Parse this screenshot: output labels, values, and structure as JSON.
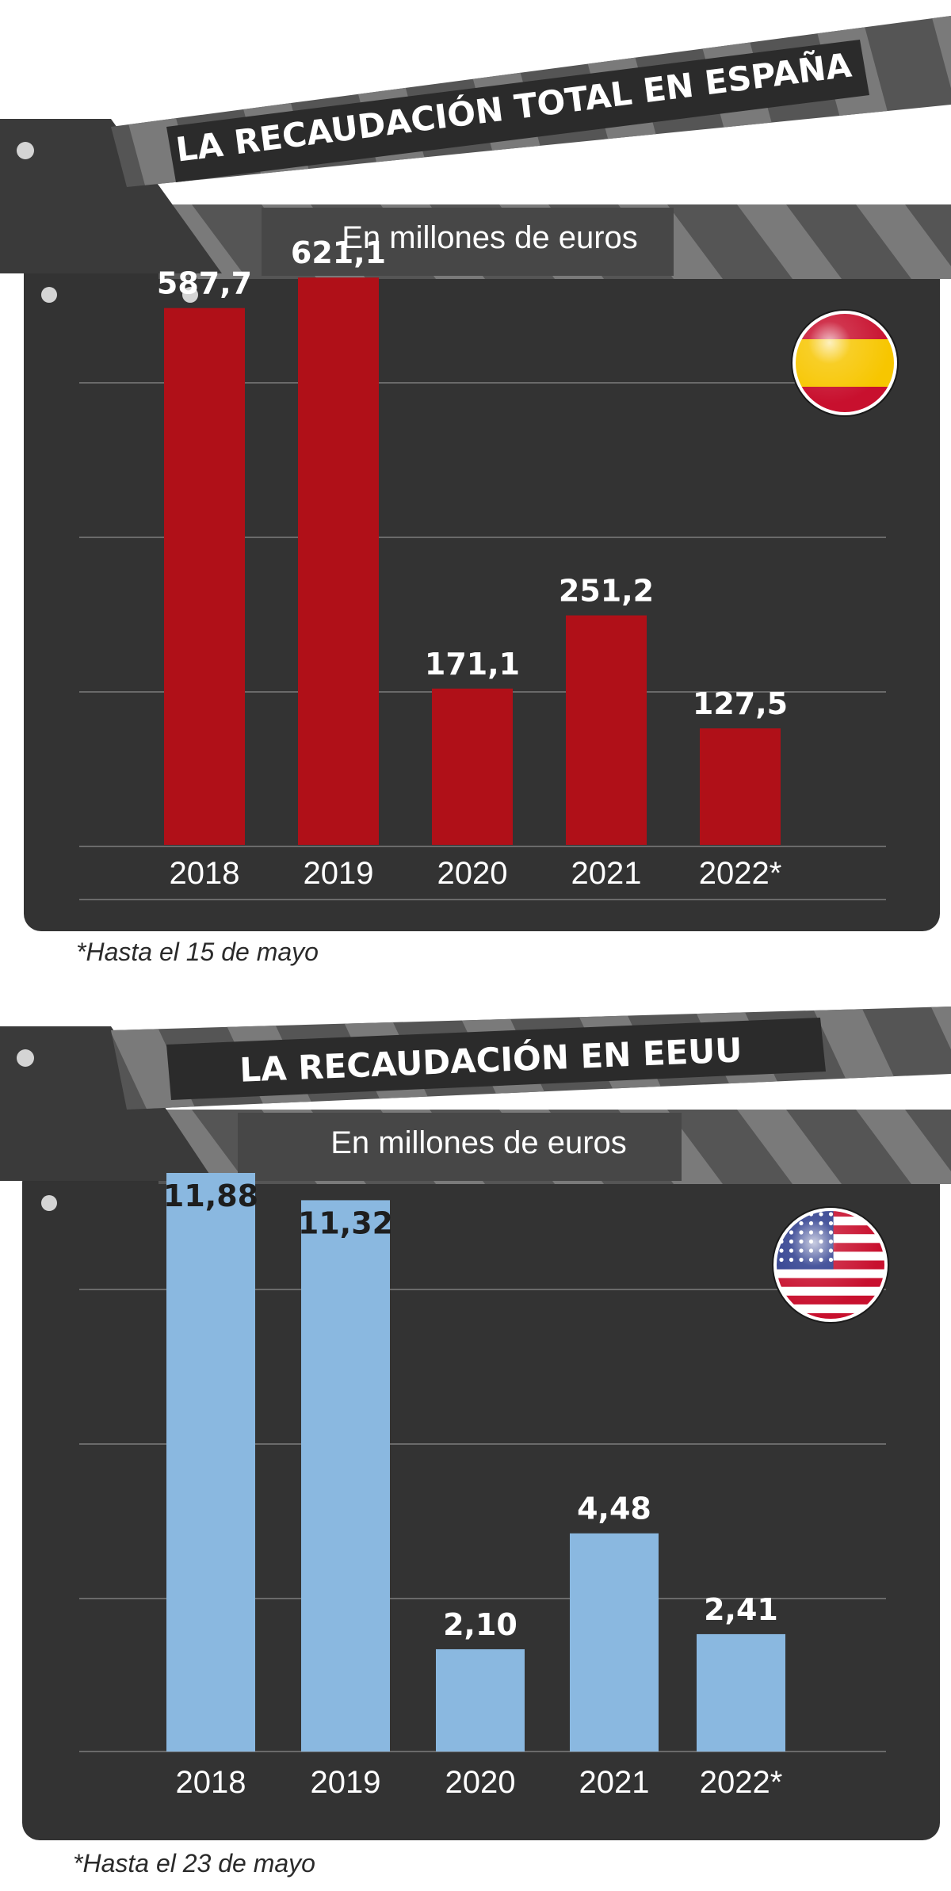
{
  "colors": {
    "board": "#333333",
    "stick": "#555555",
    "stripe": "#7a7a7a",
    "title_bar": "#2b2b2b",
    "grid": "#6a6a6a",
    "spain_bar": "#b01018",
    "usa_bar": "#8ab8e0"
  },
  "chart_data": [
    {
      "type": "bar",
      "title": "LA RECAUDACIÓN TOTAL EN ESPAÑA",
      "subtitle": "En millones de euros",
      "footnote": "*Hasta el 15 de mayo",
      "icon": "spain-flag-icon",
      "categories": [
        "2018",
        "2019",
        "2020",
        "2021",
        "2022*"
      ],
      "values": [
        587.7,
        621.1,
        171.1,
        251.2,
        127.5
      ],
      "value_labels": [
        "587,7",
        "621,1",
        "171,1",
        "251,2",
        "127,5"
      ],
      "ylim": [
        0,
        700
      ],
      "grid": true,
      "bar_color": "#b01018"
    },
    {
      "type": "bar",
      "title": "LA RECAUDACIÓN EN EEUU",
      "subtitle": "En millones de euros",
      "footnote": "*Hasta el 23 de mayo",
      "icon": "usa-flag-icon",
      "categories": [
        "2018",
        "2019",
        "2020",
        "2021",
        "2022*"
      ],
      "values": [
        11.88,
        11.32,
        2.1,
        4.48,
        2.41
      ],
      "value_labels": [
        "11,88",
        "11,32",
        "2,10",
        "4,48",
        "2,41"
      ],
      "ylim": [
        0,
        11.88
      ],
      "grid": true,
      "bar_color": "#8ab8e0"
    }
  ]
}
